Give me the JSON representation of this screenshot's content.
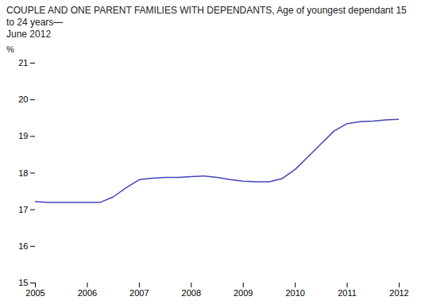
{
  "chart_data": {
    "type": "line",
    "title": "COUPLE AND ONE PARENT FAMILIES WITH DEPENDANTS, Age of youngest dependant 15 to 24 years—",
    "subtitle": "June 2012",
    "ylabel": "%",
    "x": [
      2005.0,
      2005.25,
      2005.5,
      2005.75,
      2006.0,
      2006.25,
      2006.5,
      2006.75,
      2007.0,
      2007.25,
      2007.5,
      2007.75,
      2008.0,
      2008.25,
      2008.5,
      2008.75,
      2009.0,
      2009.25,
      2009.5,
      2009.75,
      2010.0,
      2010.25,
      2010.5,
      2010.75,
      2011.0,
      2011.25,
      2011.5,
      2011.75,
      2012.0
    ],
    "values": [
      17.22,
      17.2,
      17.2,
      17.2,
      17.2,
      17.2,
      17.35,
      17.6,
      17.82,
      17.86,
      17.88,
      17.88,
      17.9,
      17.92,
      17.88,
      17.82,
      17.78,
      17.76,
      17.76,
      17.85,
      18.1,
      18.45,
      18.8,
      19.15,
      19.35,
      19.4,
      19.42,
      19.45,
      19.47
    ],
    "color": "#4444bb",
    "xlim": [
      2005,
      2012
    ],
    "xticks": [
      2005,
      2006,
      2007,
      2008,
      2009,
      2010,
      2011,
      2012
    ],
    "ylim": [
      15,
      21
    ],
    "yticks": [
      15,
      16,
      17,
      18,
      19,
      20,
      21
    ],
    "grid": false
  }
}
